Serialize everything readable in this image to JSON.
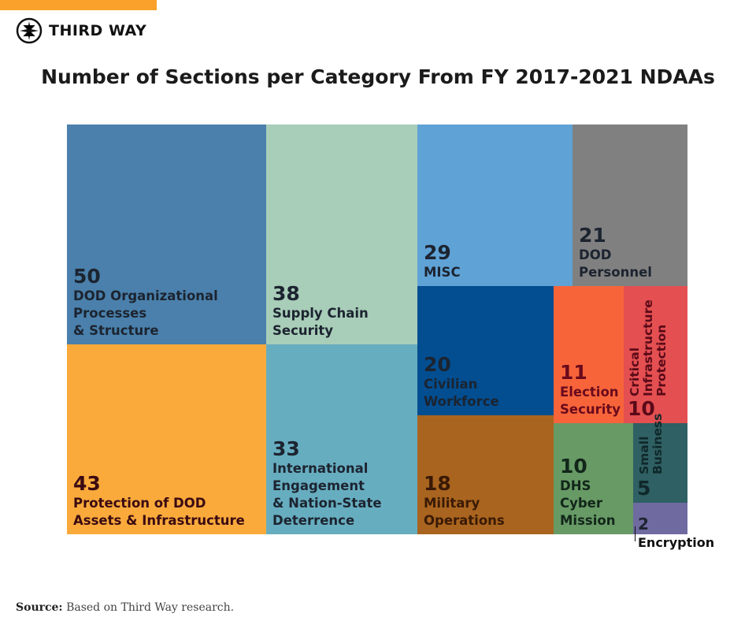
{
  "brand": {
    "name": "THIRD WAY",
    "accent": "#f9a12b"
  },
  "chart_data": {
    "type": "treemap",
    "title": "Number of Sections per Category From FY 2017-2021 NDAAs",
    "items": [
      {
        "label": "DOD Organizational Processes & Structure",
        "value": 50,
        "color": "#4a80ab"
      },
      {
        "label": "Protection of DOD Assets & Infrastructure",
        "value": 43,
        "color": "#f9aa3b"
      },
      {
        "label": "Supply Chain Security",
        "value": 38,
        "color": "#a8cdb8"
      },
      {
        "label": "International Engagement & Nation-State Deterrence",
        "value": 33,
        "color": "#67adc0"
      },
      {
        "label": "MISC",
        "value": 29,
        "color": "#5fa2d6"
      },
      {
        "label": "DOD Personnel",
        "value": 21,
        "color": "#808080"
      },
      {
        "label": "Civilian Workforce",
        "value": 20,
        "color": "#024e91"
      },
      {
        "label": "Military Operations",
        "value": 18,
        "color": "#a9641f"
      },
      {
        "label": "Election Security",
        "value": 11,
        "color": "#f7643a"
      },
      {
        "label": "Critical Infrastructure Protection",
        "value": 10,
        "color": "#e44f51"
      },
      {
        "label": "DHS Cyber Mission",
        "value": 10,
        "color": "#679a65"
      },
      {
        "label": "Small Business",
        "value": 5,
        "color": "#2f6063"
      },
      {
        "label": "Encryption",
        "value": 2,
        "color": "#6f6aa0"
      }
    ]
  },
  "source": {
    "label": "Source:",
    "text": "Based on Third Way research."
  }
}
